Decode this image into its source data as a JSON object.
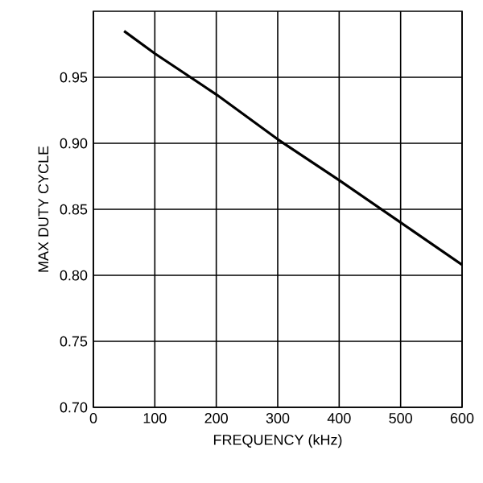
{
  "chart_data": {
    "type": "line",
    "xlabel": "FREQUENCY (kHz)",
    "ylabel": "MAX DUTY CYCLE",
    "x": [
      50,
      100,
      200,
      300,
      400,
      500,
      600
    ],
    "series": [
      {
        "color": "#000000",
        "values": [
          0.985,
          0.968,
          0.937,
          0.903,
          0.872,
          0.84,
          0.808
        ]
      }
    ],
    "xlim": [
      0,
      600
    ],
    "ylim": [
      0.7,
      1.0
    ],
    "xticks": [
      0,
      100,
      200,
      300,
      400,
      500,
      600
    ],
    "yticks": [
      {
        "value": 0.7,
        "label": "0.70"
      },
      {
        "value": 0.75,
        "label": "0.75"
      },
      {
        "value": 0.8,
        "label": "0.80"
      },
      {
        "value": 0.85,
        "label": "0.85"
      },
      {
        "value": 0.9,
        "label": "0.90"
      },
      {
        "value": 0.95,
        "label": "0.95"
      }
    ],
    "grid": true,
    "marker": "none",
    "line_style": "solid"
  }
}
